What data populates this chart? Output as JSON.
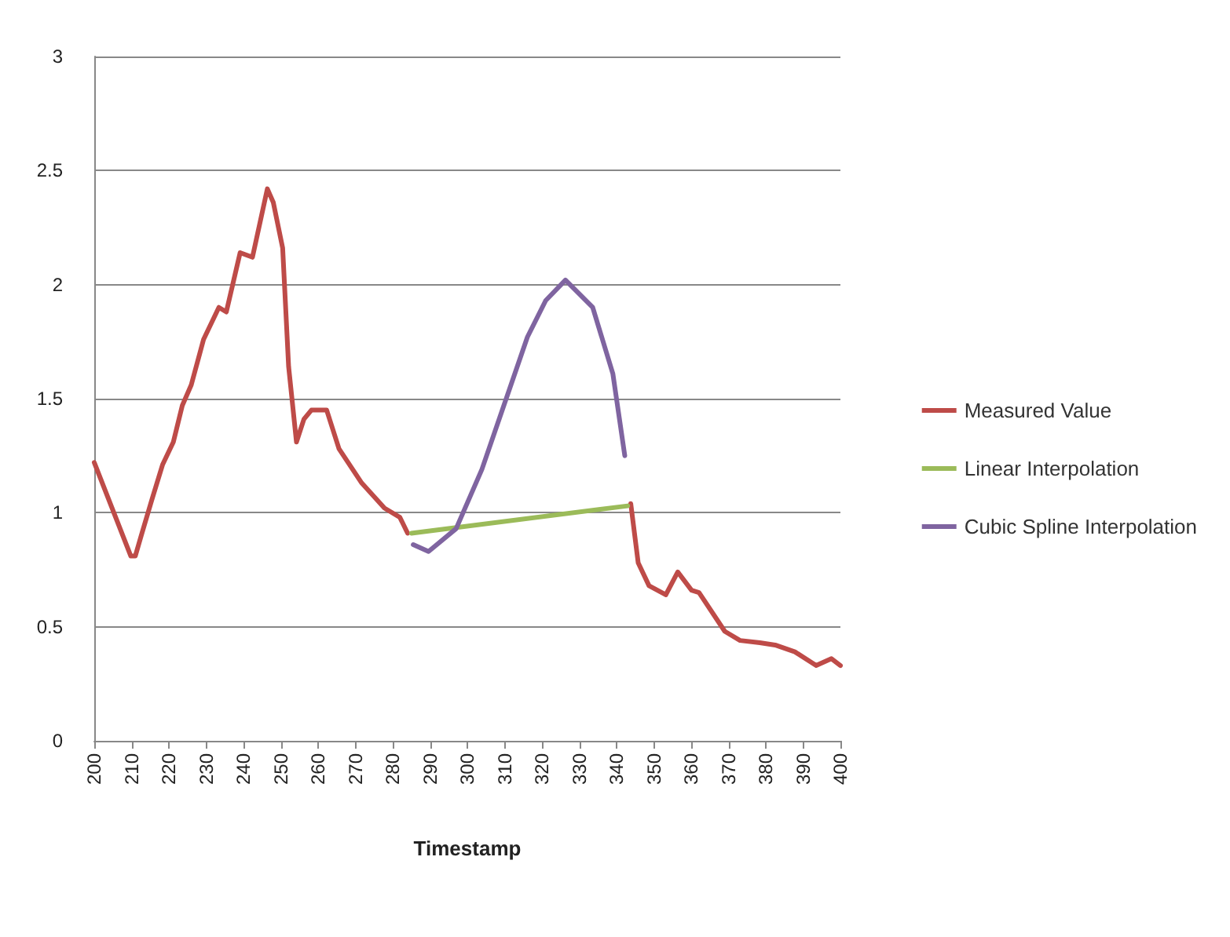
{
  "chart_data": {
    "type": "line",
    "xlabel": "Timestamp",
    "xlim": [
      200,
      400
    ],
    "xticks": [
      200,
      210,
      220,
      230,
      240,
      250,
      260,
      270,
      280,
      290,
      300,
      310,
      320,
      330,
      340,
      350,
      360,
      370,
      380,
      390,
      400
    ],
    "ylim": [
      0,
      3
    ],
    "yticks": [
      0,
      0.5,
      1,
      1.5,
      2,
      2.5,
      3
    ],
    "grid": "y",
    "legend": "right",
    "marker": "none",
    "line_style": "solid",
    "series": [
      {
        "name": "Measured Value",
        "color": "#be4b48",
        "x": [
          200,
          209.8,
          211,
          212.6,
          215.5,
          218.3,
          221.2,
          223.6,
          226,
          229.3,
          233.4,
          235.4,
          239.1,
          242.4,
          246.4,
          248,
          250.5,
          252.1,
          254.2,
          256.2,
          258.2,
          262.3,
          265.6,
          271.7,
          277.8,
          281.9,
          284,
          null,
          343.8,
          345.8,
          348.7,
          353.2,
          356.4,
          360.1,
          362.1,
          369,
          373.1,
          378.4,
          382.5,
          387.8,
          393.5,
          397.6,
          400
        ],
        "values": [
          1.22,
          0.81,
          0.81,
          0.9,
          1.06,
          1.21,
          1.31,
          1.47,
          1.56,
          1.76,
          1.9,
          1.88,
          2.14,
          2.12,
          2.42,
          2.36,
          2.16,
          1.64,
          1.31,
          1.41,
          1.45,
          1.45,
          1.28,
          1.13,
          1.02,
          0.98,
          0.91,
          null,
          1.04,
          0.78,
          0.68,
          0.64,
          0.74,
          0.66,
          0.65,
          0.48,
          0.44,
          0.43,
          0.42,
          0.39,
          0.33,
          0.36,
          0.33
        ]
      },
      {
        "name": "Linear Interpolation",
        "color": "#9bbb59",
        "x": [
          285,
          343
        ],
        "values": [
          0.91,
          1.03
        ]
      },
      {
        "name": "Cubic Spline Interpolation",
        "color": "#7f64a0",
        "x": [
          285.5,
          289.6,
          297,
          303.9,
          310,
          316.1,
          321,
          326.3,
          333.6,
          339,
          342.2
        ],
        "values": [
          0.86,
          0.83,
          0.93,
          1.19,
          1.48,
          1.77,
          1.93,
          2.02,
          1.9,
          1.61,
          1.25
        ]
      }
    ]
  }
}
